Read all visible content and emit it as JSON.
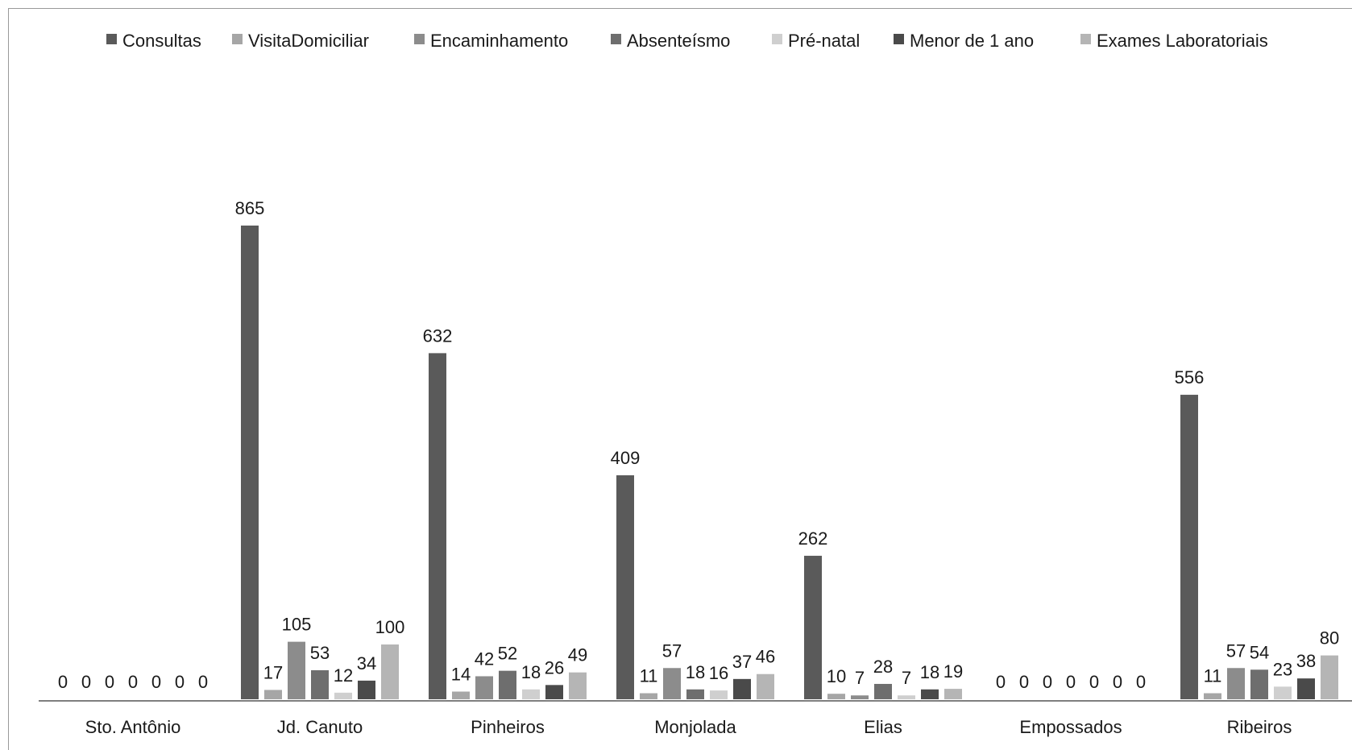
{
  "chart_data": {
    "type": "bar",
    "categories": [
      "Sto. Antônio",
      "Jd. Canuto",
      "Pinheiros",
      "Monjolada",
      "Elias",
      "Empossados",
      "Ribeiros"
    ],
    "series": [
      {
        "name": "Consultas",
        "color": "#5a5a5a",
        "values": [
          0,
          865,
          632,
          409,
          262,
          0,
          556
        ]
      },
      {
        "name": "VisitaDomiciliar",
        "color": "#a6a6a6",
        "values": [
          0,
          17,
          14,
          11,
          10,
          0,
          11
        ]
      },
      {
        "name": "Encaminhamento",
        "color": "#8c8c8c",
        "values": [
          0,
          105,
          42,
          57,
          7,
          0,
          57
        ]
      },
      {
        "name": "Absenteísmo",
        "color": "#6e6e6e",
        "values": [
          0,
          53,
          52,
          18,
          28,
          0,
          54
        ]
      },
      {
        "name": "Pré-natal",
        "color": "#cfcfcf",
        "values": [
          0,
          12,
          18,
          16,
          7,
          0,
          23
        ]
      },
      {
        "name": "Menor de 1 ano",
        "color": "#4a4a4a",
        "values": [
          0,
          34,
          26,
          37,
          18,
          0,
          38
        ]
      },
      {
        "name": "Exames Laboratoriais",
        "color": "#b5b5b5",
        "values": [
          0,
          100,
          49,
          46,
          19,
          0,
          80
        ]
      }
    ],
    "legend_position": "top",
    "grid": false
  }
}
